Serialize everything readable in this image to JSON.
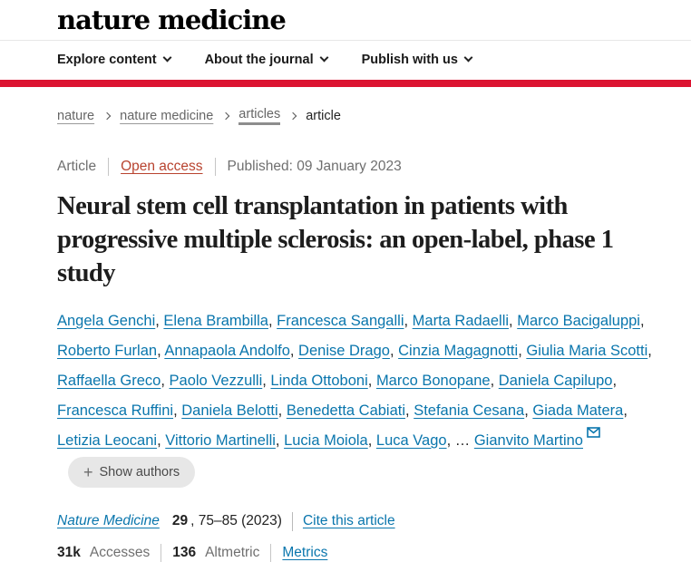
{
  "colors": {
    "accent_red": "#dc1431",
    "link_blue": "#0a76ad",
    "open_access": "#b8432f"
  },
  "brand": {
    "logo": "nature medicine"
  },
  "nav": {
    "items": [
      {
        "label": "Explore content"
      },
      {
        "label": "About the journal"
      },
      {
        "label": "Publish with us"
      }
    ]
  },
  "breadcrumb": {
    "items": [
      {
        "label": "nature",
        "link": true,
        "emphasized": false
      },
      {
        "label": "nature medicine",
        "link": true,
        "emphasized": false
      },
      {
        "label": "articles",
        "link": true,
        "emphasized": true
      },
      {
        "label": "article",
        "link": false,
        "emphasized": false
      }
    ]
  },
  "article": {
    "type_label": "Article",
    "access_label": "Open access",
    "published": "Published: 09 January 2023",
    "title": "Neural stem cell transplantation in patients with progressive multiple sclerosis: an open-label, phase 1 study",
    "authors": [
      "Angela Genchi",
      "Elena Brambilla",
      "Francesca Sangalli",
      "Marta Radaelli",
      "Marco Bacigaluppi",
      "Roberto Furlan",
      "Annapaola Andolfo",
      "Denise Drago",
      "Cinzia Magagnotti",
      "Giulia Maria Scotti",
      "Raffaella Greco",
      "Paolo Vezzulli",
      "Linda Ottoboni",
      "Marco Bonopane",
      "Daniela Capilupo",
      "Francesca Ruffini",
      "Daniela Belotti",
      "Benedetta Cabiati",
      "Stefania Cesana",
      "Giada Matera",
      "Letizia Leocani",
      "Vittorio Martinelli",
      "Lucia Moiola",
      "Luca Vago"
    ],
    "authors_ellipsis": "…",
    "corresponding_author": "Gianvito Martino",
    "show_authors_label": "Show authors",
    "citation": {
      "journal": "Nature Medicine",
      "volume": "29",
      "pages": ", 75–85 (2023)",
      "cite_label": "Cite this article"
    },
    "metrics": {
      "accesses_value": "31k",
      "accesses_label": "Accesses",
      "altmetric_value": "136",
      "altmetric_label": "Altmetric",
      "metrics_label": "Metrics"
    }
  }
}
